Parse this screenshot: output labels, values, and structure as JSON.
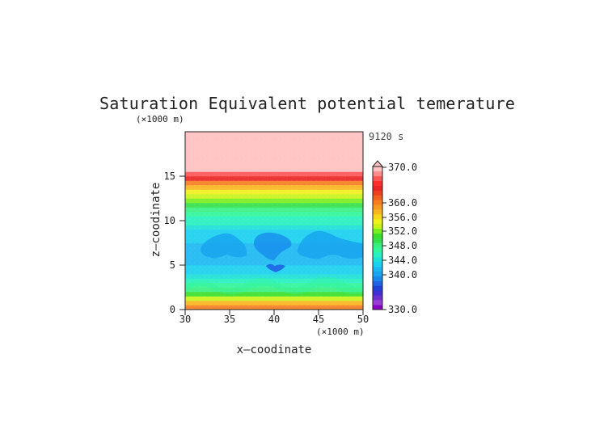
{
  "chart_data": {
    "type": "heatmap",
    "title": "Saturation Equivalent potential temerature",
    "time_label": "9120 s",
    "xlabel": "x—coodinate",
    "ylabel": "z—coodinate",
    "x_unit": "(×1000 m)",
    "y_unit": "(×1000 m)",
    "xlim": [
      30,
      50
    ],
    "ylim": [
      0,
      20
    ],
    "xticks": [
      "30",
      "35",
      "40",
      "45",
      "50"
    ],
    "yticks": [
      "0",
      "5",
      "10",
      "15"
    ],
    "colorbar": {
      "min": 330,
      "max": 370,
      "extend": "max",
      "tick_labels": [
        "370.0",
        "360.0",
        "356.0",
        "352.0",
        "348.0",
        "344.0",
        "340.0",
        "330.0"
      ],
      "levels": [
        330,
        332,
        334,
        336,
        338,
        340,
        341,
        342,
        343,
        344,
        345,
        346,
        347,
        348,
        349,
        350,
        351,
        352,
        353,
        354,
        355,
        356,
        357,
        358,
        359,
        360,
        362,
        364,
        366,
        368,
        370
      ],
      "colors": [
        "#8a00c8",
        "#9a3dd6",
        "#6f2fd0",
        "#3f2fd4",
        "#2040d8",
        "#1f63e6",
        "#168aec",
        "#16a5ee",
        "#1ab8f2",
        "#18d0f0",
        "#1ae0d8",
        "#25f0bf",
        "#30f59a",
        "#38f080",
        "#33df4a",
        "#3adf2a",
        "#78ee1e",
        "#c8f41a",
        "#f0f01b",
        "#f6d61b",
        "#f8b51e",
        "#f99820",
        "#f77d20",
        "#f26020",
        "#ee4020",
        "#ea2424",
        "#ff2c2c",
        "#ff5555",
        "#ff8a8a",
        "#ffc0c0"
      ]
    },
    "field_profile": [
      {
        "z": 0.0,
        "value": 357.0
      },
      {
        "z": 0.5,
        "value": 355.0
      },
      {
        "z": 1.0,
        "value": 352.0
      },
      {
        "z": 1.5,
        "value": 350.0
      },
      {
        "z": 2.0,
        "value": 348.5
      },
      {
        "z": 2.5,
        "value": 347.3
      },
      {
        "z": 3.0,
        "value": 346.3
      },
      {
        "z": 3.5,
        "value": 345.4
      },
      {
        "z": 4.0,
        "value": 344.6
      },
      {
        "z": 4.5,
        "value": 344.0
      },
      {
        "z": 5.0,
        "value": 343.6
      },
      {
        "z": 5.5,
        "value": 343.3
      },
      {
        "z": 6.0,
        "value": 343.2
      },
      {
        "z": 6.5,
        "value": 343.3
      },
      {
        "z": 7.0,
        "value": 343.6
      },
      {
        "z": 7.5,
        "value": 344.0
      },
      {
        "z": 8.0,
        "value": 344.6
      },
      {
        "z": 8.5,
        "value": 344.8
      },
      {
        "z": 9.0,
        "value": 345.4
      },
      {
        "z": 9.5,
        "value": 346.0
      },
      {
        "z": 10.0,
        "value": 346.6
      },
      {
        "z": 10.5,
        "value": 347.4
      },
      {
        "z": 11.0,
        "value": 348.4
      },
      {
        "z": 11.5,
        "value": 349.7
      },
      {
        "z": 12.0,
        "value": 351.0
      },
      {
        "z": 12.5,
        "value": 352.4
      },
      {
        "z": 13.0,
        "value": 353.8
      },
      {
        "z": 13.5,
        "value": 355.4
      },
      {
        "z": 14.0,
        "value": 357.5
      },
      {
        "z": 14.5,
        "value": 360.5
      },
      {
        "z": 15.0,
        "value": 365.0
      },
      {
        "z": 15.5,
        "value": 370.0
      },
      {
        "z": 20.0,
        "value": 371.0
      }
    ]
  }
}
